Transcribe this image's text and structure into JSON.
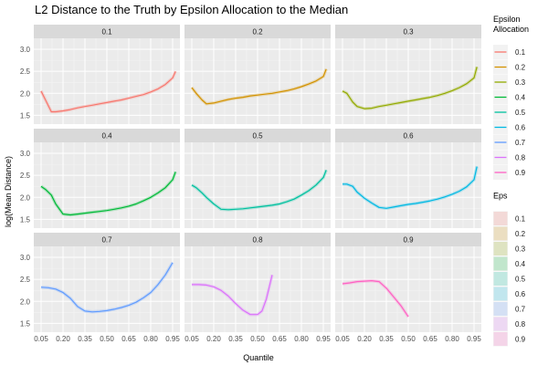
{
  "chart_data": {
    "type": "line",
    "title": "L2 Distance to the Truth by Epsilon Allocation to the Median",
    "xlabel": "Quantile",
    "ylabel": "log(Mean Distance)",
    "x_ticks": [
      "0.05",
      "0.20",
      "0.35",
      "0.50",
      "0.65",
      "0.80",
      "0.95"
    ],
    "y_ticks": [
      "1.5",
      "2.0",
      "2.5",
      "3.0"
    ],
    "xlim": [
      0.0,
      1.0
    ],
    "ylim": [
      1.3,
      3.25
    ],
    "grid": true,
    "legend_position": "right",
    "legends": [
      {
        "title_lines": [
          "Epsilon",
          "Allocation"
        ],
        "kind": "line",
        "entries": [
          "0.1",
          "0.2",
          "0.3",
          "0.4",
          "0.5",
          "0.6",
          "0.7",
          "0.8",
          "0.9"
        ]
      },
      {
        "title_lines": [
          "Eps"
        ],
        "kind": "fill",
        "entries": [
          "0.1",
          "0.2",
          "0.3",
          "0.4",
          "0.5",
          "0.6",
          "0.7",
          "0.8",
          "0.9"
        ]
      }
    ],
    "colors": [
      "#F8766D",
      "#D39200",
      "#93AA00",
      "#00BA38",
      "#00C19F",
      "#00B9E3",
      "#619CFF",
      "#DB72FB",
      "#FF61C3"
    ],
    "series": [
      {
        "name": "0.1",
        "panel": "0.1",
        "x": [
          0.05,
          0.08,
          0.12,
          0.15,
          0.2,
          0.25,
          0.3,
          0.35,
          0.4,
          0.45,
          0.5,
          0.55,
          0.6,
          0.65,
          0.7,
          0.75,
          0.8,
          0.85,
          0.9,
          0.95,
          0.97
        ],
        "y": [
          2.05,
          1.85,
          1.58,
          1.58,
          1.6,
          1.63,
          1.67,
          1.7,
          1.73,
          1.76,
          1.79,
          1.82,
          1.85,
          1.89,
          1.93,
          1.97,
          2.03,
          2.1,
          2.2,
          2.35,
          2.5
        ]
      },
      {
        "name": "0.2",
        "panel": "0.2",
        "x": [
          0.05,
          0.08,
          0.12,
          0.15,
          0.2,
          0.25,
          0.3,
          0.35,
          0.4,
          0.45,
          0.5,
          0.55,
          0.6,
          0.65,
          0.7,
          0.75,
          0.8,
          0.85,
          0.9,
          0.95,
          0.97
        ],
        "y": [
          2.13,
          2.0,
          1.85,
          1.76,
          1.78,
          1.82,
          1.86,
          1.89,
          1.91,
          1.94,
          1.96,
          1.98,
          2.0,
          2.03,
          2.06,
          2.1,
          2.15,
          2.21,
          2.28,
          2.38,
          2.55
        ]
      },
      {
        "name": "0.3",
        "panel": "0.3",
        "x": [
          0.05,
          0.08,
          0.12,
          0.15,
          0.2,
          0.25,
          0.3,
          0.35,
          0.4,
          0.45,
          0.5,
          0.55,
          0.6,
          0.65,
          0.7,
          0.75,
          0.8,
          0.85,
          0.9,
          0.95,
          0.97
        ],
        "y": [
          2.05,
          2.0,
          1.8,
          1.7,
          1.65,
          1.66,
          1.7,
          1.73,
          1.76,
          1.79,
          1.82,
          1.85,
          1.88,
          1.91,
          1.95,
          2.0,
          2.06,
          2.13,
          2.22,
          2.35,
          2.6
        ]
      },
      {
        "name": "0.4",
        "panel": "0.4",
        "x": [
          0.05,
          0.08,
          0.12,
          0.15,
          0.2,
          0.25,
          0.3,
          0.35,
          0.4,
          0.45,
          0.5,
          0.55,
          0.6,
          0.65,
          0.7,
          0.75,
          0.8,
          0.85,
          0.9,
          0.95,
          0.97
        ],
        "y": [
          2.25,
          2.18,
          2.05,
          1.85,
          1.62,
          1.6,
          1.62,
          1.64,
          1.66,
          1.68,
          1.7,
          1.73,
          1.76,
          1.8,
          1.85,
          1.92,
          2.0,
          2.1,
          2.22,
          2.4,
          2.58
        ]
      },
      {
        "name": "0.5",
        "panel": "0.5",
        "x": [
          0.05,
          0.08,
          0.12,
          0.15,
          0.2,
          0.25,
          0.3,
          0.35,
          0.4,
          0.45,
          0.5,
          0.55,
          0.6,
          0.65,
          0.7,
          0.75,
          0.8,
          0.85,
          0.9,
          0.95,
          0.97
        ],
        "y": [
          2.28,
          2.22,
          2.1,
          2.0,
          1.85,
          1.73,
          1.72,
          1.73,
          1.74,
          1.76,
          1.78,
          1.8,
          1.82,
          1.85,
          1.9,
          1.96,
          2.05,
          2.15,
          2.28,
          2.45,
          2.62
        ]
      },
      {
        "name": "0.6",
        "panel": "0.6",
        "x": [
          0.05,
          0.08,
          0.12,
          0.15,
          0.2,
          0.25,
          0.3,
          0.35,
          0.4,
          0.45,
          0.5,
          0.55,
          0.6,
          0.65,
          0.7,
          0.75,
          0.8,
          0.85,
          0.9,
          0.95,
          0.97
        ],
        "y": [
          2.3,
          2.3,
          2.25,
          2.12,
          1.98,
          1.87,
          1.77,
          1.75,
          1.78,
          1.81,
          1.84,
          1.86,
          1.89,
          1.92,
          1.96,
          2.01,
          2.07,
          2.14,
          2.24,
          2.4,
          2.7
        ]
      },
      {
        "name": "0.7",
        "panel": "0.7",
        "x": [
          0.05,
          0.1,
          0.15,
          0.2,
          0.25,
          0.3,
          0.35,
          0.4,
          0.45,
          0.5,
          0.55,
          0.6,
          0.65,
          0.7,
          0.75,
          0.8,
          0.85,
          0.9,
          0.95
        ],
        "y": [
          2.32,
          2.31,
          2.28,
          2.2,
          2.07,
          1.88,
          1.78,
          1.76,
          1.77,
          1.79,
          1.82,
          1.86,
          1.91,
          1.98,
          2.08,
          2.2,
          2.38,
          2.6,
          2.88
        ]
      },
      {
        "name": "0.8",
        "panel": "0.8",
        "x": [
          0.05,
          0.1,
          0.15,
          0.2,
          0.25,
          0.3,
          0.35,
          0.4,
          0.45,
          0.5,
          0.53,
          0.56,
          0.6
        ],
        "y": [
          2.38,
          2.38,
          2.37,
          2.33,
          2.25,
          2.12,
          1.95,
          1.8,
          1.7,
          1.7,
          1.78,
          2.05,
          2.6
        ]
      },
      {
        "name": "0.9",
        "panel": "0.9",
        "x": [
          0.05,
          0.1,
          0.15,
          0.2,
          0.25,
          0.3,
          0.35,
          0.4,
          0.45,
          0.5
        ],
        "y": [
          2.4,
          2.42,
          2.45,
          2.46,
          2.47,
          2.45,
          2.3,
          2.1,
          1.9,
          1.65
        ]
      }
    ]
  }
}
